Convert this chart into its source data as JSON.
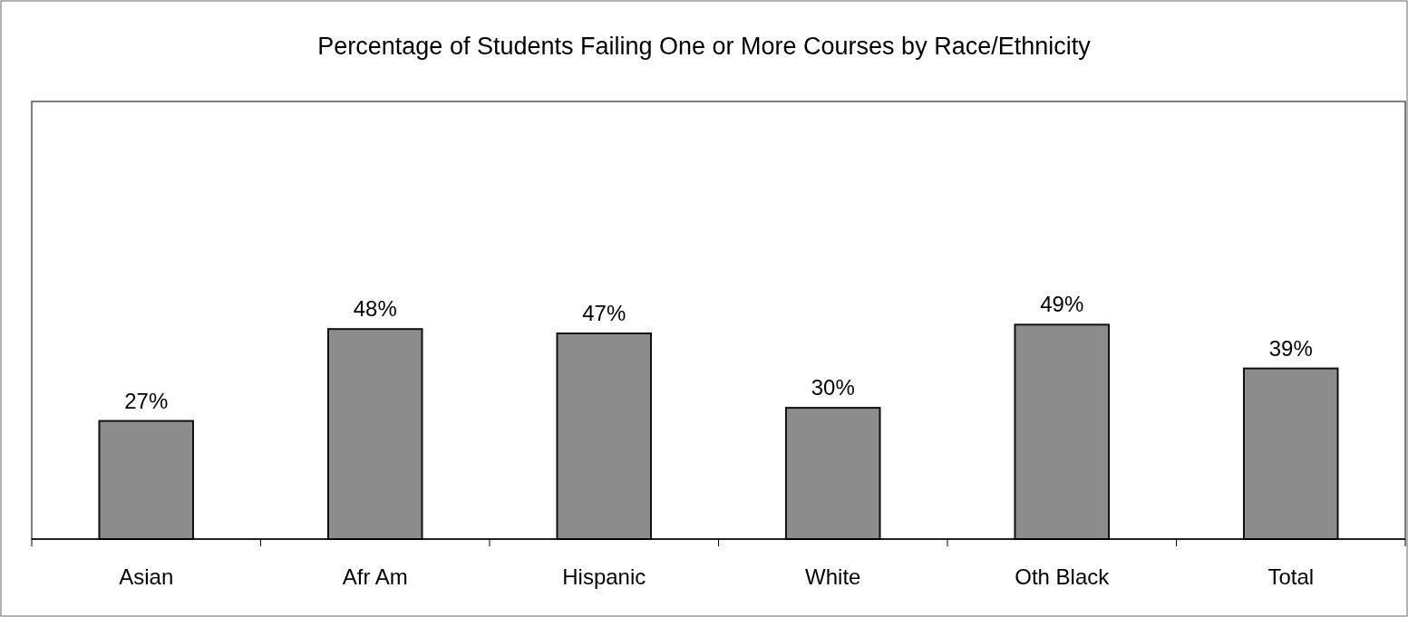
{
  "chart_data": {
    "type": "bar",
    "title": "Percentage of Students Failing One or More Courses by Race/Ethnicity",
    "categories": [
      "Asian",
      "Afr Am",
      "Hispanic",
      "White",
      "Oth Black",
      "Total"
    ],
    "values": [
      27,
      48,
      47,
      30,
      49,
      39
    ],
    "value_labels": [
      "27%",
      "48%",
      "47%",
      "30%",
      "49%",
      "39%"
    ],
    "color": "#8c8c8c",
    "ylim": [
      0,
      100
    ]
  }
}
